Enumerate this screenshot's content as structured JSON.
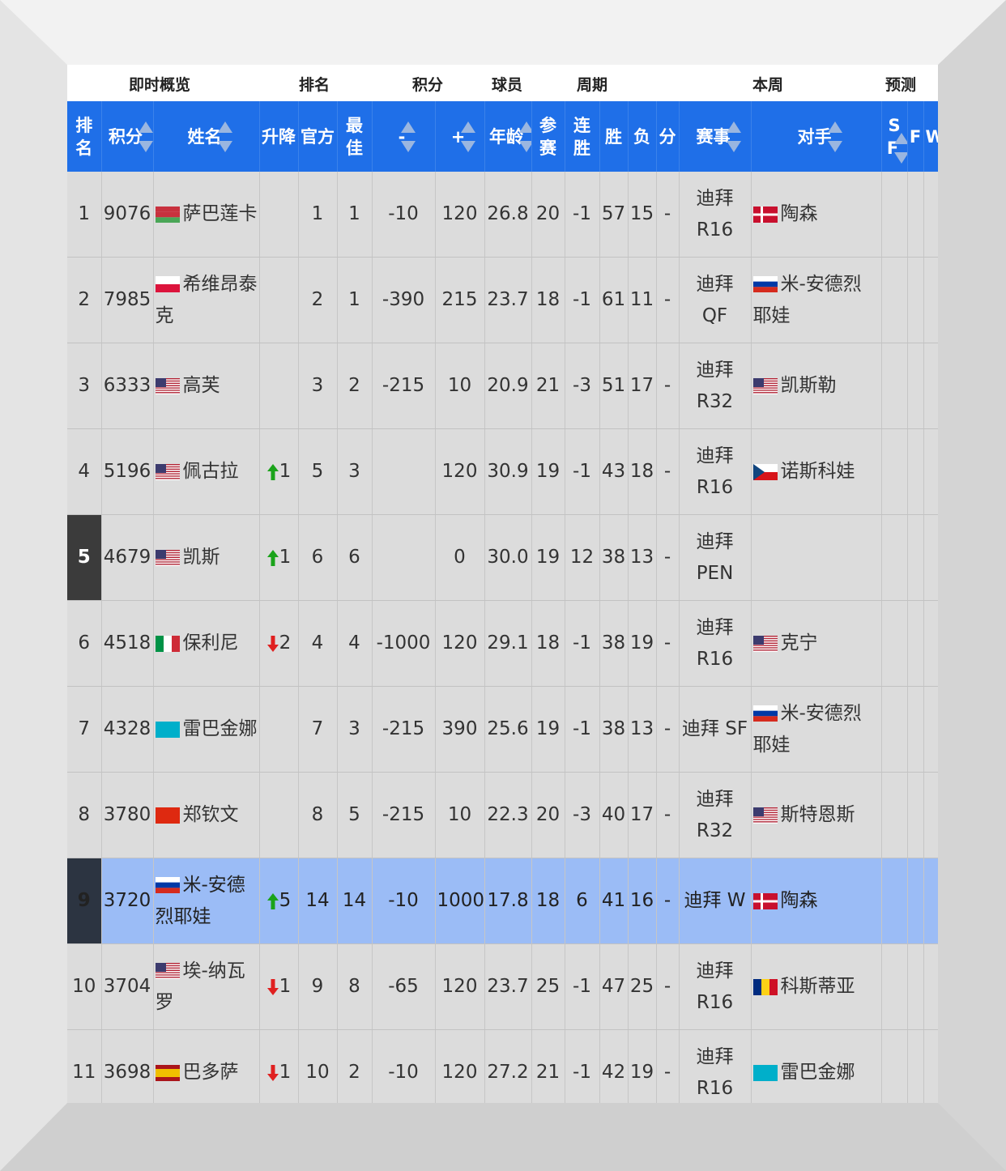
{
  "group_headers": [
    "即时概览",
    "排名",
    "积分",
    "球员",
    "周期",
    "本周",
    "预测"
  ],
  "columns": [
    "排名",
    "积分",
    "姓名",
    "升降",
    "官方",
    "最佳",
    "-",
    "+",
    "年龄",
    "参赛",
    "连胜",
    "胜",
    "负",
    "分",
    "赛事",
    "对手",
    "SF",
    "F",
    "W"
  ],
  "change_trend": [
    null,
    null,
    null,
    "up",
    "up",
    "down",
    null,
    null,
    "up",
    "down",
    "down"
  ],
  "rows": [
    [
      1,
      9076,
      "萨巴莲卡",
      null,
      1,
      1,
      -10,
      120,
      26.8,
      20,
      -1,
      57,
      15,
      "-",
      "迪拜 R16",
      "陶森",
      null,
      null,
      null
    ],
    [
      2,
      7985,
      "希维昂泰克",
      null,
      2,
      1,
      -390,
      215,
      23.7,
      18,
      -1,
      61,
      11,
      "-",
      "迪拜 QF",
      "米-安德烈耶娃",
      null,
      null,
      null
    ],
    [
      3,
      6333,
      "高芙",
      null,
      3,
      2,
      -215,
      10,
      20.9,
      21,
      -3,
      51,
      17,
      "-",
      "迪拜 R32",
      "凯斯勒",
      null,
      null,
      null
    ],
    [
      4,
      5196,
      "佩古拉",
      1,
      5,
      3,
      null,
      120,
      30.9,
      19,
      -1,
      43,
      18,
      "-",
      "迪拜 R16",
      "诺斯科娃",
      null,
      null,
      null
    ],
    [
      5,
      4679,
      "凯斯",
      1,
      6,
      6,
      null,
      0,
      "30.0",
      19,
      12,
      38,
      13,
      "-",
      "迪拜 PEN",
      null,
      null,
      null,
      null
    ],
    [
      6,
      4518,
      "保利尼",
      2,
      4,
      4,
      -1000,
      120,
      29.1,
      18,
      -1,
      38,
      19,
      "-",
      "迪拜 R16",
      "克宁",
      null,
      null,
      null
    ],
    [
      7,
      4328,
      "雷巴金娜",
      null,
      7,
      3,
      -215,
      390,
      25.6,
      19,
      -1,
      38,
      13,
      "-",
      "迪拜 SF",
      "米-安德烈耶娃",
      null,
      null,
      null
    ],
    [
      8,
      3780,
      "郑钦文",
      null,
      8,
      5,
      -215,
      10,
      22.3,
      20,
      -3,
      40,
      17,
      "-",
      "迪拜 R32",
      "斯特恩斯",
      null,
      null,
      null
    ],
    [
      9,
      3720,
      "米-安德烈耶娃",
      5,
      14,
      14,
      -10,
      1000,
      17.8,
      18,
      6,
      41,
      16,
      "-",
      "迪拜 W",
      "陶森",
      null,
      null,
      null
    ],
    [
      10,
      3704,
      "埃-纳瓦罗",
      1,
      9,
      8,
      -65,
      120,
      23.7,
      25,
      -1,
      47,
      25,
      "-",
      "迪拜 R16",
      "科斯蒂亚",
      null,
      null,
      null
    ],
    [
      11,
      3698,
      "巴多萨",
      1,
      10,
      2,
      -10,
      120,
      27.2,
      21,
      -1,
      42,
      19,
      "-",
      "迪拜 R16",
      "雷巴金娜",
      null,
      null,
      null
    ]
  ]
}
